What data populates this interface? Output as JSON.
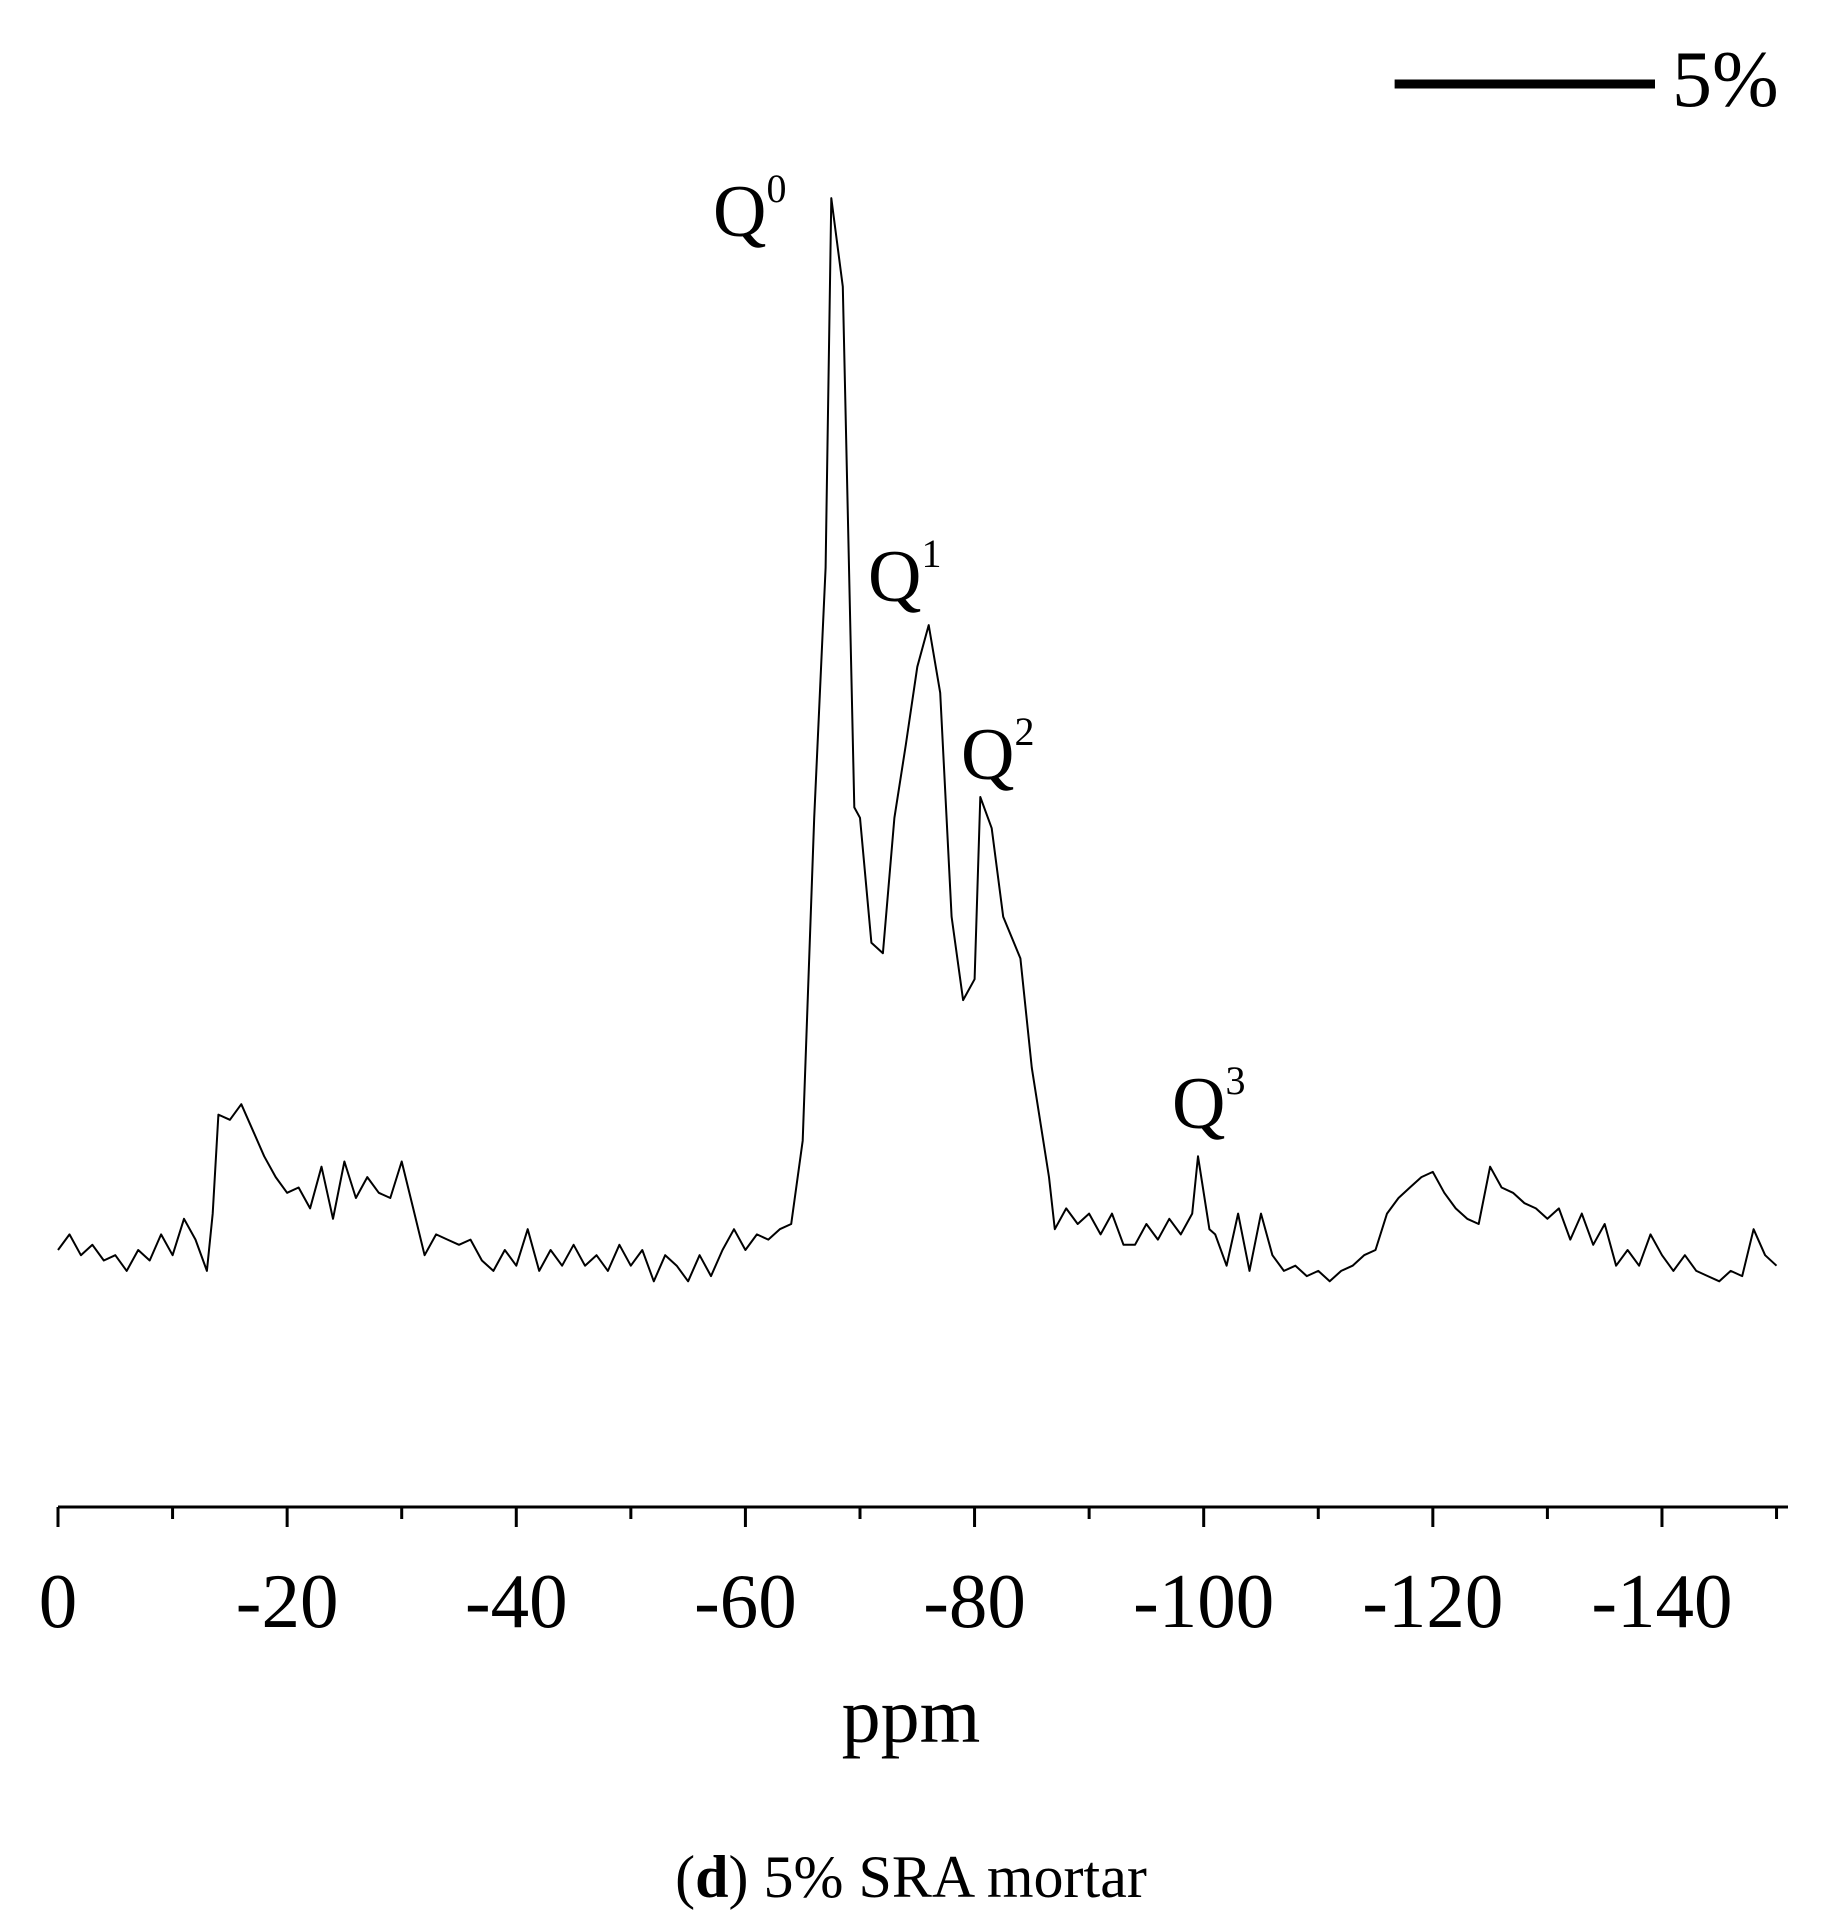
{
  "chart_data": {
    "type": "line",
    "x_label": "ppm",
    "caption": [
      "(",
      "d",
      ") 5% SRA mortar"
    ],
    "scale_bar": {
      "value": 5,
      "label": "5%"
    },
    "annotations": [
      {
        "text": "Q",
        "sup": "0"
      },
      {
        "text": "Q",
        "sup": "1"
      },
      {
        "text": "Q",
        "sup": "2"
      },
      {
        "text": "Q",
        "sup": "3"
      }
    ],
    "xlim": [
      0,
      -151
    ],
    "ylim": [
      -5,
      21.5
    ],
    "xticks": [
      0,
      -20,
      -40,
      -60,
      -80,
      -100,
      -120,
      -140
    ],
    "xminorticks": [
      -10,
      -30,
      -50,
      -70,
      -90,
      -110,
      -130,
      -150
    ],
    "series": [
      {
        "color": "#000000",
        "x": [
          0,
          -1,
          -2,
          -3,
          -4,
          -5,
          -6,
          -7,
          -8,
          -9,
          -10,
          -11,
          -12,
          -13,
          -13.5,
          -14,
          -15,
          -16,
          -17,
          -18,
          -19,
          -20,
          -21,
          -22,
          -23,
          -24,
          -25,
          -26,
          -27,
          -28,
          -29,
          -30,
          -31,
          -32,
          -33,
          -34,
          -35,
          -36,
          -37,
          -38,
          -39,
          -40,
          -41,
          -42,
          -43,
          -44,
          -45,
          -46,
          -47,
          -48,
          -49,
          -50,
          -51,
          -52,
          -53,
          -54,
          -55,
          -56,
          -57,
          -58,
          -59,
          -60,
          -61,
          -62,
          -63,
          -64,
          -65,
          -66,
          -67,
          -67.5,
          -68.5,
          -69.5,
          -70,
          -71,
          -72,
          -73,
          -74,
          -75,
          -76,
          -77,
          -78,
          -79,
          -80,
          -80.5,
          -81.5,
          -82.5,
          -84,
          -85,
          -86.5,
          -87,
          -88,
          -89,
          -90,
          -91,
          -92,
          -93,
          -94,
          -95,
          -96,
          -97,
          -98,
          -99,
          -99.5,
          -100.5,
          -101,
          -102,
          -103,
          -104,
          -105,
          -106,
          -107,
          -108,
          -109,
          -110,
          -111,
          -112,
          -113,
          -114,
          -115,
          -116,
          -117,
          -118,
          -119,
          -120,
          -121,
          -122,
          -123,
          -124,
          -125,
          -126,
          -127,
          -128,
          -129,
          -130,
          -131,
          -132,
          -133,
          -134,
          -135,
          -136,
          -137,
          -138,
          -139,
          -140,
          -141,
          -142,
          -143,
          -144,
          -145,
          -146,
          -147,
          -148,
          -149,
          -150
        ],
        "values": [
          -0.2,
          0.1,
          -0.3,
          -0.1,
          -0.4,
          -0.3,
          -0.6,
          -0.2,
          -0.4,
          0.1,
          -0.3,
          0.4,
          0.0,
          -0.6,
          0.5,
          2.4,
          2.3,
          2.6,
          2.1,
          1.6,
          1.2,
          0.9,
          1.0,
          0.6,
          1.4,
          0.4,
          1.5,
          0.8,
          1.2,
          0.9,
          0.8,
          1.5,
          0.6,
          -0.3,
          0.1,
          0.0,
          -0.1,
          0.0,
          -0.4,
          -0.6,
          -0.2,
          -0.5,
          0.2,
          -0.6,
          -0.2,
          -0.5,
          -0.1,
          -0.5,
          -0.3,
          -0.6,
          -0.1,
          -0.5,
          -0.2,
          -0.8,
          -0.3,
          -0.5,
          -0.8,
          -0.3,
          -0.7,
          -0.2,
          0.2,
          -0.2,
          0.1,
          0.0,
          0.2,
          0.3,
          1.9,
          8.1,
          12.9,
          20.0,
          18.3,
          8.3,
          8.1,
          5.7,
          5.5,
          8.1,
          9.5,
          11.0,
          11.8,
          10.5,
          6.2,
          4.6,
          5.0,
          8.5,
          7.9,
          6.2,
          5.4,
          3.3,
          1.2,
          0.2,
          0.6,
          0.3,
          0.5,
          0.1,
          0.5,
          -0.1,
          -0.1,
          0.3,
          0.0,
          0.4,
          0.1,
          0.5,
          1.6,
          0.2,
          0.1,
          -0.5,
          0.5,
          -0.6,
          0.5,
          -0.3,
          -0.6,
          -0.5,
          -0.7,
          -0.6,
          -0.8,
          -0.6,
          -0.5,
          -0.3,
          -0.2,
          0.5,
          0.8,
          1.0,
          1.2,
          1.3,
          0.9,
          0.6,
          0.4,
          0.3,
          1.4,
          1.0,
          0.9,
          0.7,
          0.6,
          0.4,
          0.6,
          0.0,
          0.5,
          -0.1,
          0.3,
          -0.5,
          -0.2,
          -0.5,
          0.1,
          -0.3,
          -0.6,
          -0.3,
          -0.6,
          -0.7,
          -0.8,
          -0.6,
          -0.7,
          0.2,
          -0.3,
          -0.5
        ]
      }
    ]
  }
}
